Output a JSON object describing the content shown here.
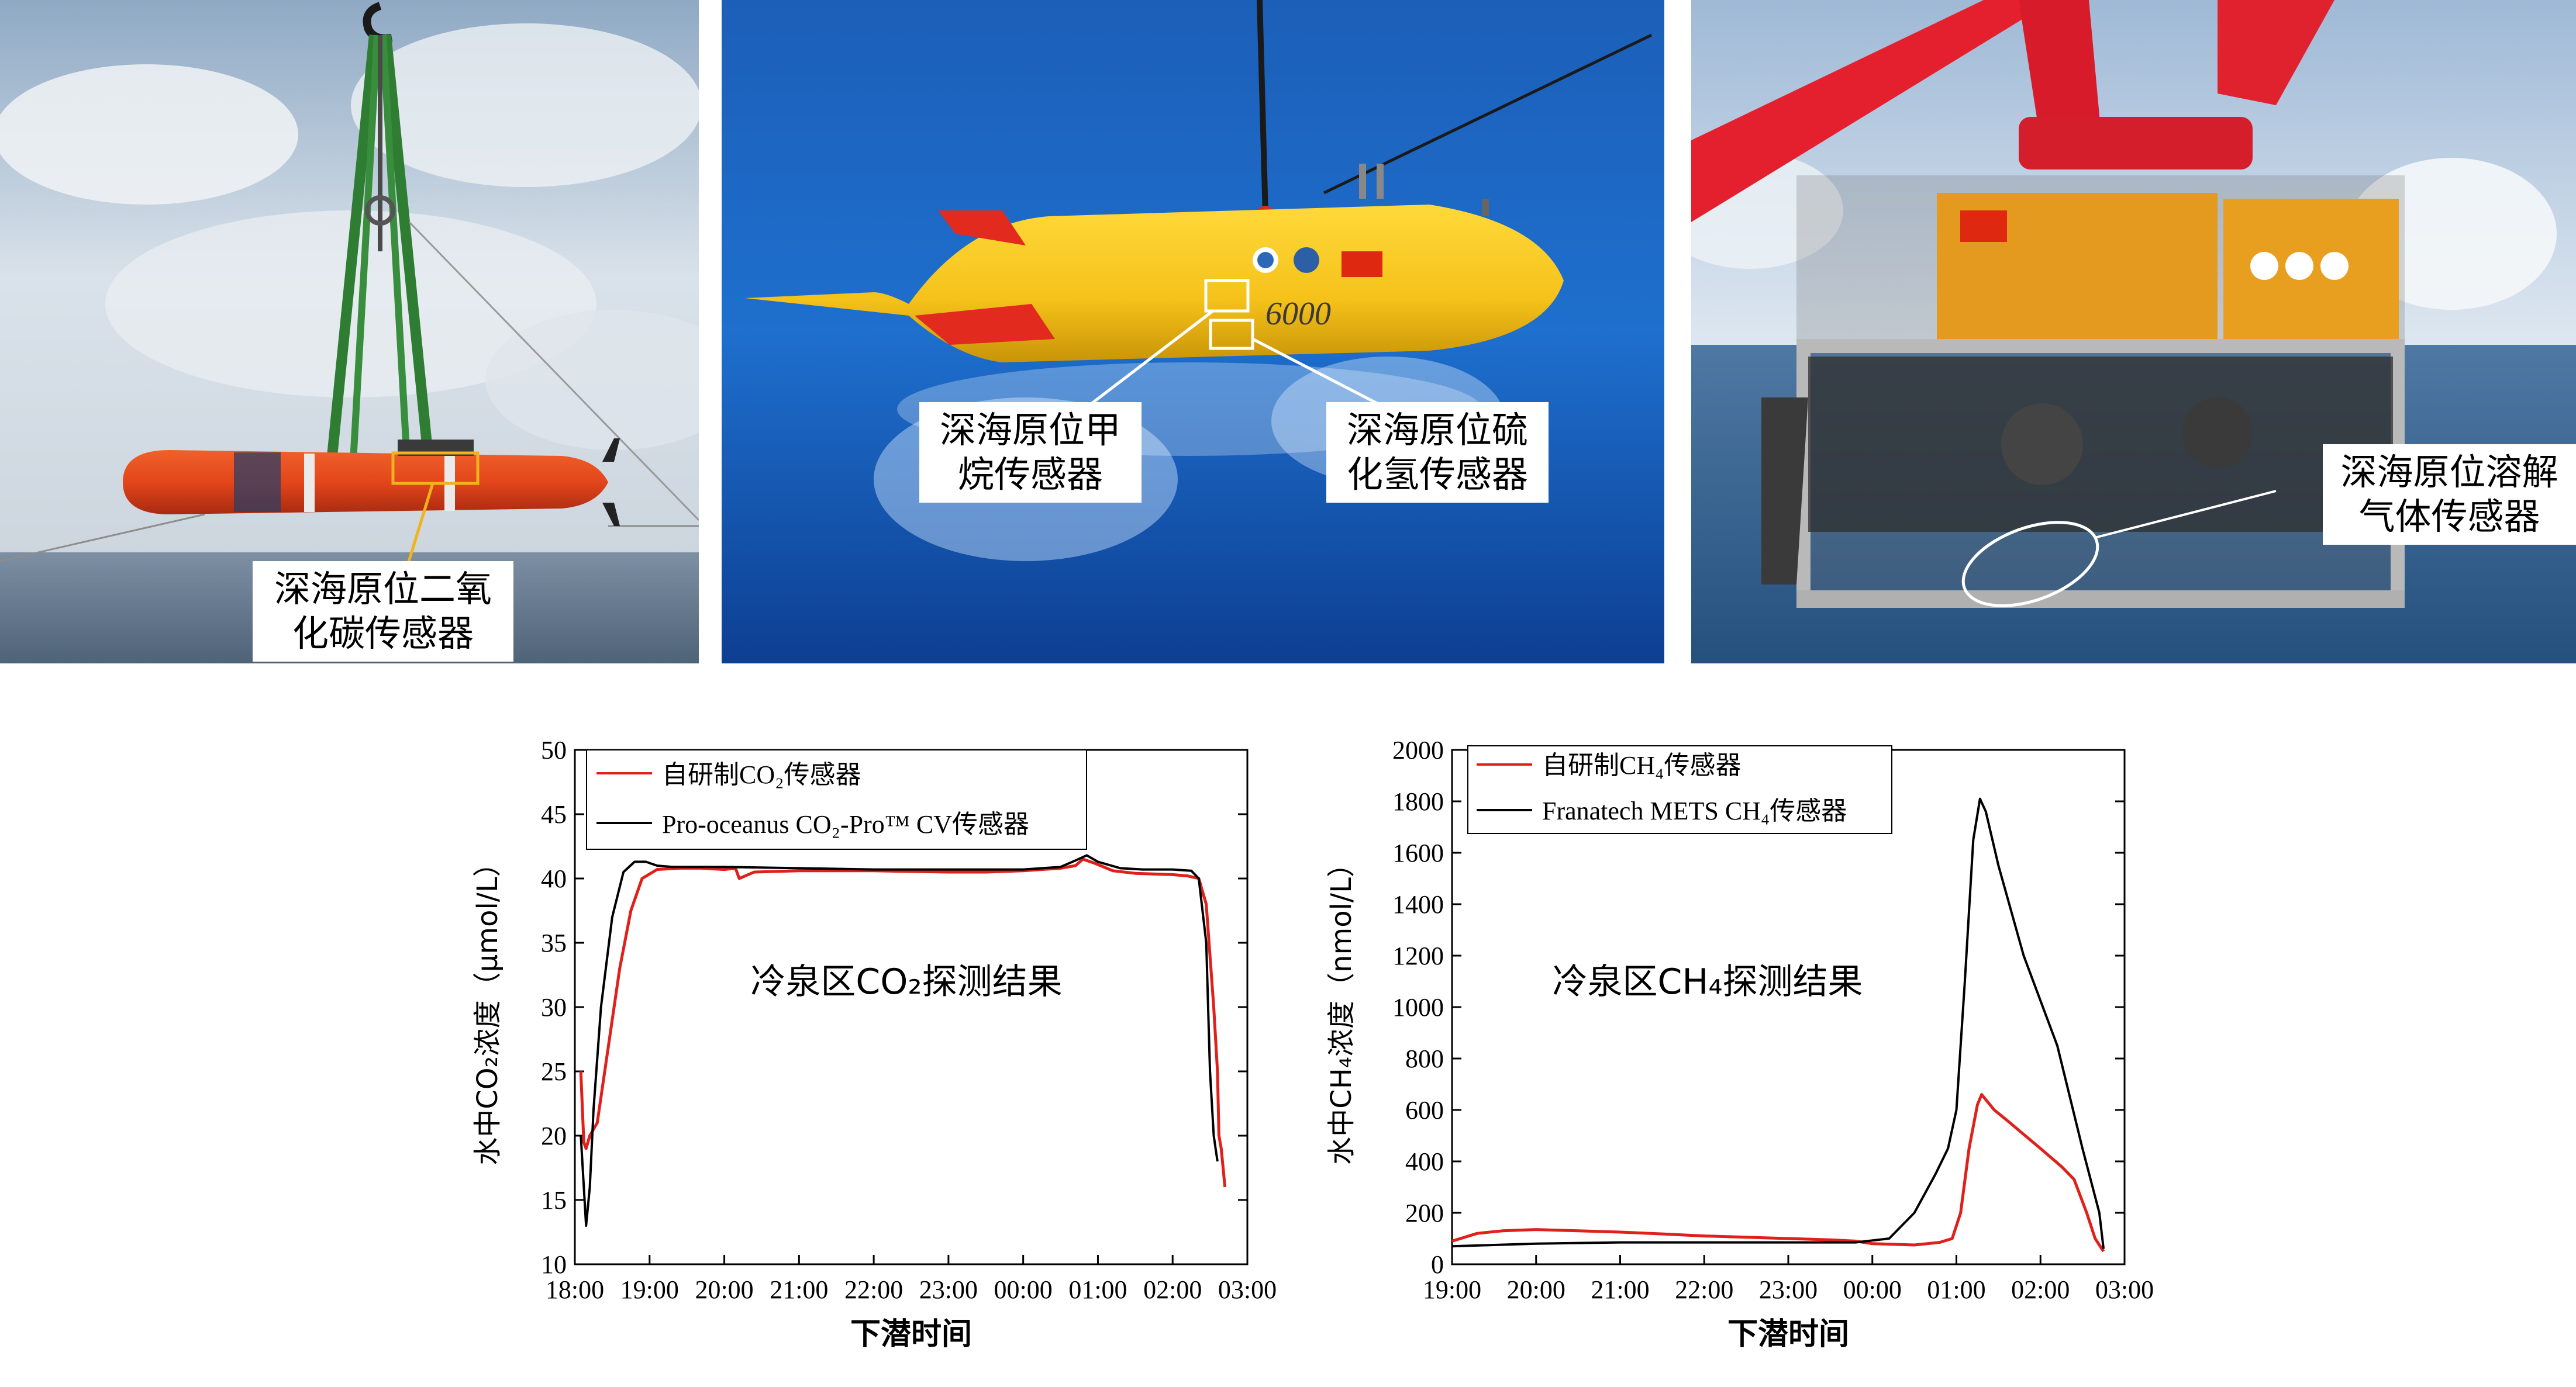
{
  "photos": [
    {
      "label": "深海原位二氧\n化碳传感器"
    },
    {
      "label_left": "深海原位甲\n烷传感器",
      "label_right": "深海原位硫\n化氢传感器",
      "hull_text": "6000"
    },
    {
      "label": "深海原位溶解\n气体传感器"
    }
  ],
  "chart_data": [
    {
      "type": "line",
      "annotation": "冷泉区CO₂探测结果",
      "xlabel": "下潜时间",
      "ylabel": "水中CO₂浓度（μmol/L）",
      "x_ticks": [
        "18:00",
        "19:00",
        "20:00",
        "21:00",
        "22:00",
        "23:00",
        "00:00",
        "01:00",
        "02:00",
        "03:00"
      ],
      "x_range_hours": [
        18,
        27
      ],
      "ylim": [
        10,
        50
      ],
      "y_ticks": [
        10,
        15,
        20,
        25,
        30,
        35,
        40,
        45,
        50
      ],
      "legend_position": "top-left",
      "series": [
        {
          "name": "自研制CO₂传感器",
          "color": "#e0201b",
          "x": [
            18.08,
            18.12,
            18.15,
            18.2,
            18.3,
            18.45,
            18.6,
            18.75,
            18.9,
            19.1,
            19.4,
            19.7,
            20.0,
            20.15,
            20.2,
            20.4,
            21.0,
            22.0,
            23.0,
            23.5,
            24.0,
            24.5,
            24.7,
            24.8,
            24.95,
            25.2,
            25.5,
            26.0,
            26.2,
            26.35,
            26.45,
            26.55,
            26.6,
            26.62,
            26.65,
            26.7
          ],
          "y": [
            25,
            19.5,
            19,
            20,
            21,
            27,
            33,
            37.5,
            40,
            40.7,
            40.8,
            40.8,
            40.7,
            40.8,
            40,
            40.5,
            40.6,
            40.6,
            40.5,
            40.5,
            40.6,
            40.8,
            41.0,
            41.5,
            41.2,
            40.6,
            40.4,
            40.3,
            40.2,
            40,
            38,
            30,
            25,
            20,
            19,
            16
          ]
        },
        {
          "name": "Pro-oceanus CO₂-Pro™ CV传感器",
          "color": "#000000",
          "x": [
            18.08,
            18.15,
            18.2,
            18.25,
            18.35,
            18.5,
            18.65,
            18.8,
            18.95,
            19.1,
            19.3,
            19.6,
            20.0,
            21.0,
            22.0,
            23.0,
            24.0,
            24.5,
            24.7,
            24.85,
            25.0,
            25.3,
            25.6,
            26.0,
            26.25,
            26.35,
            26.45,
            26.5,
            26.55,
            26.6
          ],
          "y": [
            20,
            13,
            16,
            22,
            30,
            37,
            40.5,
            41.3,
            41.3,
            41,
            40.9,
            40.9,
            40.9,
            40.8,
            40.7,
            40.7,
            40.7,
            40.9,
            41.4,
            41.8,
            41.3,
            40.8,
            40.7,
            40.7,
            40.6,
            40,
            35,
            25,
            20,
            18
          ]
        }
      ]
    },
    {
      "type": "line",
      "annotation": "冷泉区CH₄探测结果",
      "xlabel": "下潜时间",
      "ylabel": "水中CH₄浓度（nmol/L）",
      "x_ticks": [
        "19:00",
        "20:00",
        "21:00",
        "22:00",
        "23:00",
        "00:00",
        "01:00",
        "02:00",
        "03:00"
      ],
      "x_range_hours": [
        19,
        27
      ],
      "ylim": [
        0,
        2000
      ],
      "y_ticks": [
        0,
        200,
        400,
        600,
        800,
        1000,
        1200,
        1400,
        1600,
        1800,
        2000
      ],
      "legend_position": "top-left",
      "series": [
        {
          "name": "自研制CH₄传感器",
          "color": "#e0201b",
          "x": [
            19.0,
            19.3,
            19.6,
            20.0,
            20.5,
            21.0,
            21.5,
            22.0,
            22.5,
            23.0,
            23.5,
            23.8,
            24.0,
            24.5,
            24.8,
            24.95,
            25.05,
            25.15,
            25.25,
            25.3,
            25.35,
            25.45,
            25.6,
            26.0,
            26.25,
            26.4,
            26.55,
            26.65,
            26.75
          ],
          "y": [
            90,
            120,
            130,
            135,
            130,
            125,
            118,
            110,
            105,
            100,
            95,
            90,
            80,
            75,
            85,
            100,
            200,
            450,
            620,
            660,
            640,
            600,
            560,
            450,
            380,
            330,
            200,
            100,
            50
          ]
        },
        {
          "name": "Franatech METS CH₄传感器",
          "color": "#000000",
          "x": [
            19.0,
            19.5,
            20.0,
            21.0,
            22.0,
            23.0,
            23.8,
            24.2,
            24.5,
            24.75,
            24.9,
            25.0,
            25.1,
            25.2,
            25.28,
            25.35,
            25.5,
            25.8,
            26.2,
            26.5,
            26.7,
            26.75
          ],
          "y": [
            70,
            75,
            80,
            85,
            85,
            85,
            85,
            100,
            200,
            350,
            450,
            600,
            1100,
            1650,
            1810,
            1760,
            1550,
            1200,
            850,
            450,
            200,
            60
          ]
        }
      ]
    }
  ]
}
